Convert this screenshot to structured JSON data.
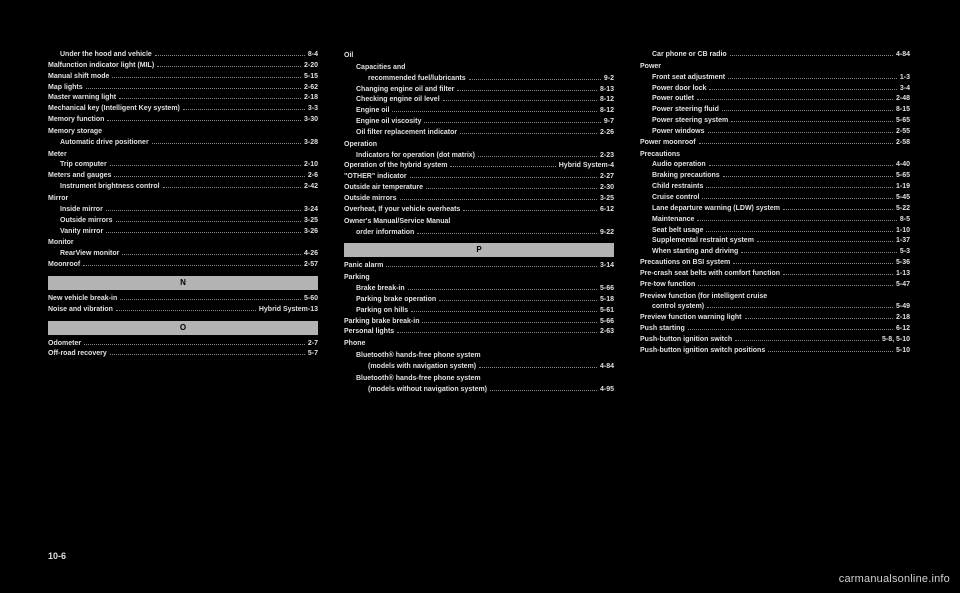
{
  "footer": "10-6",
  "watermark": "carmanualsonline.info",
  "sections": {
    "N": "N",
    "O": "O",
    "P": "P"
  },
  "col1": [
    {
      "t": "entry",
      "indent": 1,
      "label": "Under the hood and vehicle",
      "page": "8-4"
    },
    {
      "t": "entry",
      "indent": 0,
      "label": "Malfunction indicator light (MIL)",
      "page": "2-20"
    },
    {
      "t": "entry",
      "indent": 0,
      "label": "Manual shift mode",
      "page": "5-15"
    },
    {
      "t": "entry",
      "indent": 0,
      "label": "Map lights",
      "page": "2-62"
    },
    {
      "t": "entry",
      "indent": 0,
      "label": "Master warning light",
      "page": "2-18"
    },
    {
      "t": "entry",
      "indent": 0,
      "label": "Mechanical key (Intelligent Key system)",
      "page": "3-3"
    },
    {
      "t": "entry",
      "indent": 0,
      "label": "Memory function",
      "page": "3-30"
    },
    {
      "t": "head",
      "label": "Memory storage"
    },
    {
      "t": "entry",
      "indent": 1,
      "label": "Automatic drive positioner",
      "page": "3-28"
    },
    {
      "t": "head",
      "label": "Meter"
    },
    {
      "t": "entry",
      "indent": 1,
      "label": "Trip computer",
      "page": "2-10"
    },
    {
      "t": "entry",
      "indent": 0,
      "label": "Meters and gauges",
      "page": "2-6"
    },
    {
      "t": "entry",
      "indent": 1,
      "label": "Instrument brightness control",
      "page": "2-42"
    },
    {
      "t": "head",
      "label": "Mirror"
    },
    {
      "t": "entry",
      "indent": 1,
      "label": "Inside mirror",
      "page": "3-24"
    },
    {
      "t": "entry",
      "indent": 1,
      "label": "Outside mirrors",
      "page": "3-25"
    },
    {
      "t": "entry",
      "indent": 1,
      "label": "Vanity mirror",
      "page": "3-26"
    },
    {
      "t": "head",
      "label": "Monitor"
    },
    {
      "t": "entry",
      "indent": 1,
      "label": "RearView monitor",
      "page": "4-26"
    },
    {
      "t": "entry",
      "indent": 0,
      "label": "Moonroof",
      "page": "2-57"
    },
    {
      "t": "band",
      "key": "N"
    },
    {
      "t": "entry",
      "indent": 0,
      "label": "New vehicle break-in",
      "page": "5-60"
    },
    {
      "t": "entry",
      "indent": 0,
      "label": "Noise and vibration",
      "page": "Hybrid System-13"
    },
    {
      "t": "band",
      "key": "O"
    },
    {
      "t": "entry",
      "indent": 0,
      "label": "Odometer",
      "page": "2-7"
    },
    {
      "t": "entry",
      "indent": 0,
      "label": "Off-road recovery",
      "page": "5-7"
    }
  ],
  "col2": [
    {
      "t": "head",
      "label": "Oil"
    },
    {
      "t": "head_indent",
      "label": "Capacities and"
    },
    {
      "t": "entry",
      "indent": 2,
      "label": "recommended fuel/lubricants",
      "page": "9-2"
    },
    {
      "t": "entry",
      "indent": 1,
      "label": "Changing engine oil and filter",
      "page": "8-13"
    },
    {
      "t": "entry",
      "indent": 1,
      "label": "Checking engine oil level",
      "page": "8-12"
    },
    {
      "t": "entry",
      "indent": 1,
      "label": "Engine oil",
      "page": "8-12"
    },
    {
      "t": "entry",
      "indent": 1,
      "label": "Engine oil viscosity",
      "page": "9-7"
    },
    {
      "t": "entry",
      "indent": 1,
      "label": "Oil filter replacement indicator",
      "page": "2-26"
    },
    {
      "t": "head",
      "label": "Operation"
    },
    {
      "t": "entry",
      "indent": 1,
      "label": "Indicators for operation (dot matrix)",
      "page": "2-23"
    },
    {
      "t": "entry",
      "indent": 0,
      "label": "Operation of the hybrid system",
      "page": "Hybrid System-4"
    },
    {
      "t": "entry",
      "indent": 0,
      "label": "\"OTHER\" indicator",
      "page": "2-27"
    },
    {
      "t": "entry",
      "indent": 0,
      "label": "Outside air temperature",
      "page": "2-30"
    },
    {
      "t": "entry",
      "indent": 0,
      "label": "Outside mirrors",
      "page": "3-25"
    },
    {
      "t": "entry",
      "indent": 0,
      "label": "Overheat, If your vehicle overheats",
      "page": "6-12"
    },
    {
      "t": "head",
      "label": "Owner's Manual/Service Manual"
    },
    {
      "t": "entry",
      "indent": 1,
      "label": "order information",
      "page": "9-22"
    },
    {
      "t": "band",
      "key": "P"
    },
    {
      "t": "entry",
      "indent": 0,
      "label": "Panic alarm",
      "page": "3-14"
    },
    {
      "t": "head",
      "label": "Parking"
    },
    {
      "t": "entry",
      "indent": 1,
      "label": "Brake break-in",
      "page": "5-66"
    },
    {
      "t": "entry",
      "indent": 1,
      "label": "Parking brake operation",
      "page": "5-18"
    },
    {
      "t": "entry",
      "indent": 1,
      "label": "Parking on hills",
      "page": "5-61"
    },
    {
      "t": "entry",
      "indent": 0,
      "label": "Parking brake break-in",
      "page": "5-66"
    },
    {
      "t": "entry",
      "indent": 0,
      "label": "Personal lights",
      "page": "2-63"
    },
    {
      "t": "head",
      "label": "Phone"
    },
    {
      "t": "head_indent",
      "label": "Bluetooth® hands-free phone system"
    },
    {
      "t": "entry",
      "indent": 2,
      "label": "(models with navigation system)",
      "page": "4-84"
    },
    {
      "t": "head_indent",
      "label": "Bluetooth® hands-free phone system"
    },
    {
      "t": "entry",
      "indent": 2,
      "label": "(models without navigation system)",
      "page": "4-95"
    }
  ],
  "col3": [
    {
      "t": "entry",
      "indent": 1,
      "label": "Car phone or CB radio",
      "page": "4-84"
    },
    {
      "t": "head",
      "label": "Power"
    },
    {
      "t": "entry",
      "indent": 1,
      "label": "Front seat adjustment",
      "page": "1-3"
    },
    {
      "t": "entry",
      "indent": 1,
      "label": "Power door lock",
      "page": "3-4"
    },
    {
      "t": "entry",
      "indent": 1,
      "label": "Power outlet",
      "page": "2-48"
    },
    {
      "t": "entry",
      "indent": 1,
      "label": "Power steering fluid",
      "page": "8-15"
    },
    {
      "t": "entry",
      "indent": 1,
      "label": "Power steering system",
      "page": "5-65"
    },
    {
      "t": "entry",
      "indent": 1,
      "label": "Power windows",
      "page": "2-55"
    },
    {
      "t": "entry",
      "indent": 0,
      "label": "Power moonroof",
      "page": "2-58"
    },
    {
      "t": "head",
      "label": "Precautions"
    },
    {
      "t": "entry",
      "indent": 1,
      "label": "Audio operation",
      "page": "4-40"
    },
    {
      "t": "entry",
      "indent": 1,
      "label": "Braking precautions",
      "page": "5-65"
    },
    {
      "t": "entry",
      "indent": 1,
      "label": "Child restraints",
      "page": "1-19"
    },
    {
      "t": "entry",
      "indent": 1,
      "label": "Cruise control",
      "page": "5-45"
    },
    {
      "t": "entry",
      "indent": 1,
      "label": "Lane departure warning (LDW) system",
      "page": "5-22"
    },
    {
      "t": "entry",
      "indent": 1,
      "label": "Maintenance",
      "page": "8-5"
    },
    {
      "t": "entry",
      "indent": 1,
      "label": "Seat belt usage",
      "page": "1-10"
    },
    {
      "t": "entry",
      "indent": 1,
      "label": "Supplemental restraint system",
      "page": "1-37"
    },
    {
      "t": "entry",
      "indent": 1,
      "label": "When starting and driving",
      "page": "5-3"
    },
    {
      "t": "entry",
      "indent": 0,
      "label": "Precautions on BSI system",
      "page": "5-36"
    },
    {
      "t": "entry",
      "indent": 0,
      "label": "Pre-crash seat belts with comfort function",
      "page": "1-13"
    },
    {
      "t": "entry",
      "indent": 0,
      "label": "Pre-tow function",
      "page": "5-47"
    },
    {
      "t": "head",
      "label": "Preview function (for intelligent cruise"
    },
    {
      "t": "entry",
      "indent": 1,
      "label": "control system)",
      "page": "5-49"
    },
    {
      "t": "entry",
      "indent": 0,
      "label": "Preview function warning light",
      "page": "2-18"
    },
    {
      "t": "entry",
      "indent": 0,
      "label": "Push starting",
      "page": "6-12"
    },
    {
      "t": "entry",
      "indent": 0,
      "label": "Push-button ignition switch",
      "page": "5-8, 5-10"
    },
    {
      "t": "entry",
      "indent": 0,
      "label": "Push-button ignition switch positions",
      "page": "5-10"
    }
  ]
}
